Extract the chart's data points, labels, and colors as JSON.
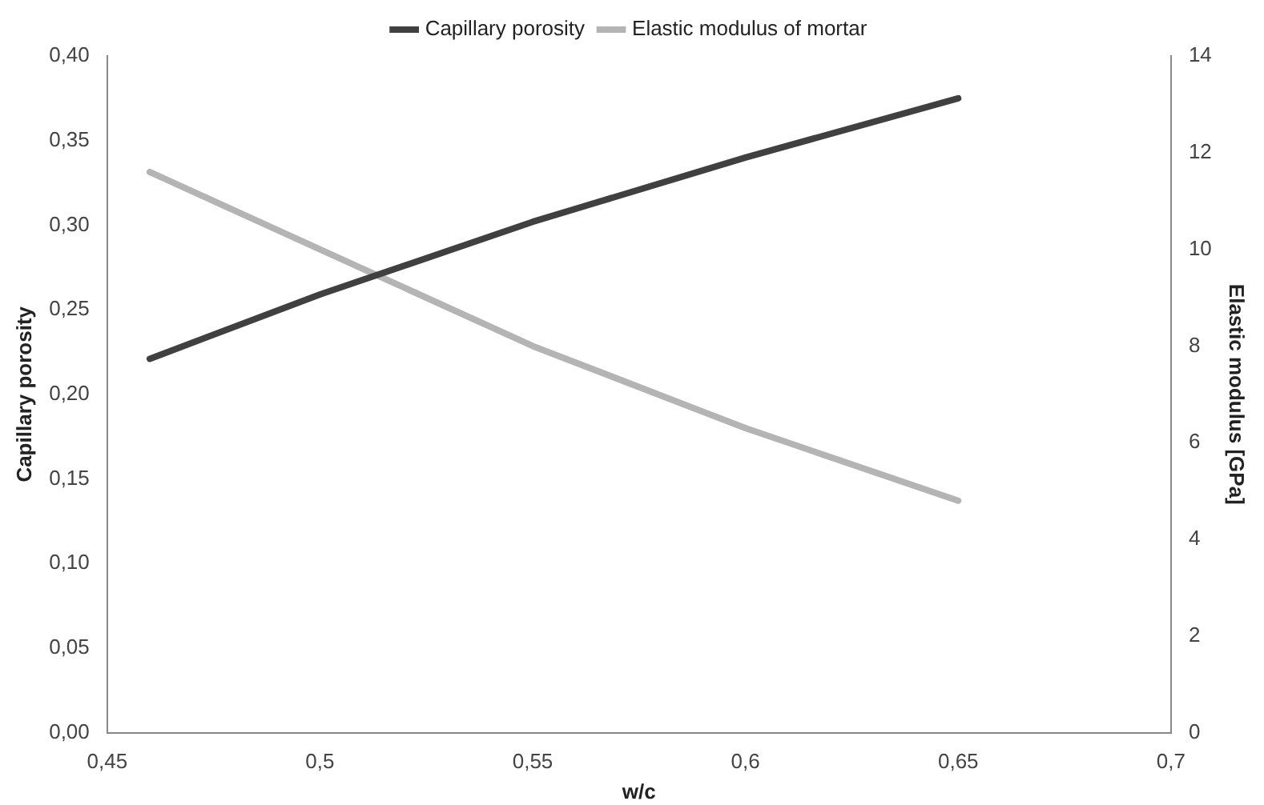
{
  "chart_data": {
    "type": "line",
    "xlabel": "w/c",
    "ylabel": "Capillary porosity",
    "y2label": "Elastic modulus [GPa]",
    "xlim": [
      0.45,
      0.7
    ],
    "xticks": [
      {
        "value": 0.45,
        "label": "0,45"
      },
      {
        "value": 0.5,
        "label": "0,5"
      },
      {
        "value": 0.55,
        "label": "0,55"
      },
      {
        "value": 0.6,
        "label": "0,6"
      },
      {
        "value": 0.65,
        "label": "0,65"
      },
      {
        "value": 0.7,
        "label": "0,7"
      }
    ],
    "ylim": [
      0,
      0.4
    ],
    "yticks": [
      {
        "value": 0,
        "label": "0,00"
      },
      {
        "value": 0.05,
        "label": "0,05"
      },
      {
        "value": 0.1,
        "label": "0,10"
      },
      {
        "value": 0.15,
        "label": "0,15"
      },
      {
        "value": 0.2,
        "label": "0,20"
      },
      {
        "value": 0.25,
        "label": "0,25"
      },
      {
        "value": 0.3,
        "label": "0,30"
      },
      {
        "value": 0.35,
        "label": "0,35"
      },
      {
        "value": 0.4,
        "label": "0,40"
      }
    ],
    "y2lim": [
      0,
      14
    ],
    "y2ticks": [
      0,
      2,
      4,
      6,
      8,
      10,
      12,
      14
    ],
    "x": [
      0.46,
      0.5,
      0.55,
      0.6,
      0.65
    ],
    "series": [
      {
        "name": "Capillary porosity",
        "color": "#404040",
        "values": [
          0.221,
          0.259,
          0.302,
          0.34,
          0.375
        ]
      },
      {
        "name": "Elastic modulus of mortar",
        "color": "#b4b4b4",
        "axis": "y2",
        "values": [
          11.6,
          10.0,
          8.0,
          6.3,
          4.8
        ]
      }
    ],
    "grid": false,
    "legend": "top",
    "marker": "none",
    "line_style": "solid"
  }
}
